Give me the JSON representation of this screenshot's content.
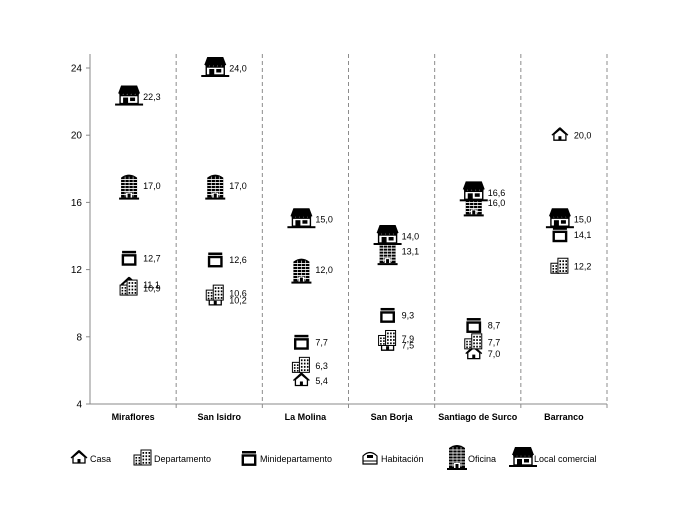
{
  "chart_data": {
    "type": "scatter",
    "title": "",
    "xlabel": "",
    "ylabel": "",
    "ylim": [
      4,
      24
    ],
    "yticks": [
      "4",
      "8",
      "12",
      "16",
      "20",
      "24"
    ],
    "grid": false,
    "legend_position": "bottom",
    "categories": [
      "Miraflores",
      "San Isidro",
      "La Molina",
      "San Borja",
      "Santiago de Surco",
      "Barranco"
    ],
    "series": [
      {
        "name": "Casa",
        "icon": "house-icon",
        "values": [
          11.1,
          10.2,
          5.4,
          7.5,
          7.0,
          20.0
        ],
        "labels": [
          "11,1",
          "10,2",
          "5,4",
          "7,5",
          "7,0",
          "20,0"
        ]
      },
      {
        "name": "Departamento",
        "icon": "apartment-building-icon",
        "values": [
          10.9,
          10.6,
          6.3,
          7.9,
          7.7,
          12.2
        ],
        "labels": [
          "10,9",
          "10,6",
          "6,3",
          "7,9",
          "7,7",
          "12,2"
        ]
      },
      {
        "name": "Minidepartamento",
        "icon": "mini-apartment-icon",
        "values": [
          12.7,
          12.6,
          7.7,
          9.3,
          8.7,
          14.1
        ],
        "labels": [
          "12,7",
          "12,6",
          "7,7",
          "9,3",
          "8,7",
          "14,1"
        ]
      },
      {
        "name": "Habitación",
        "icon": "room-icon",
        "values": [
          null,
          null,
          null,
          null,
          null,
          null
        ],
        "labels": [
          "",
          "",
          "",
          "",
          "",
          ""
        ]
      },
      {
        "name": "Oficina",
        "icon": "office-tower-icon",
        "values": [
          17.0,
          17.0,
          12.0,
          13.1,
          16.0,
          null
        ],
        "labels": [
          "17,0",
          "17,0",
          "12,0",
          "13,1",
          "16,0",
          ""
        ]
      },
      {
        "name": "Local comercial",
        "icon": "storefront-icon",
        "values": [
          22.3,
          24.0,
          15.0,
          14.0,
          16.6,
          15.0
        ],
        "labels": [
          "22,3",
          "24,0",
          "15,0",
          "14,0",
          "16,6",
          "15,0"
        ]
      }
    ]
  }
}
